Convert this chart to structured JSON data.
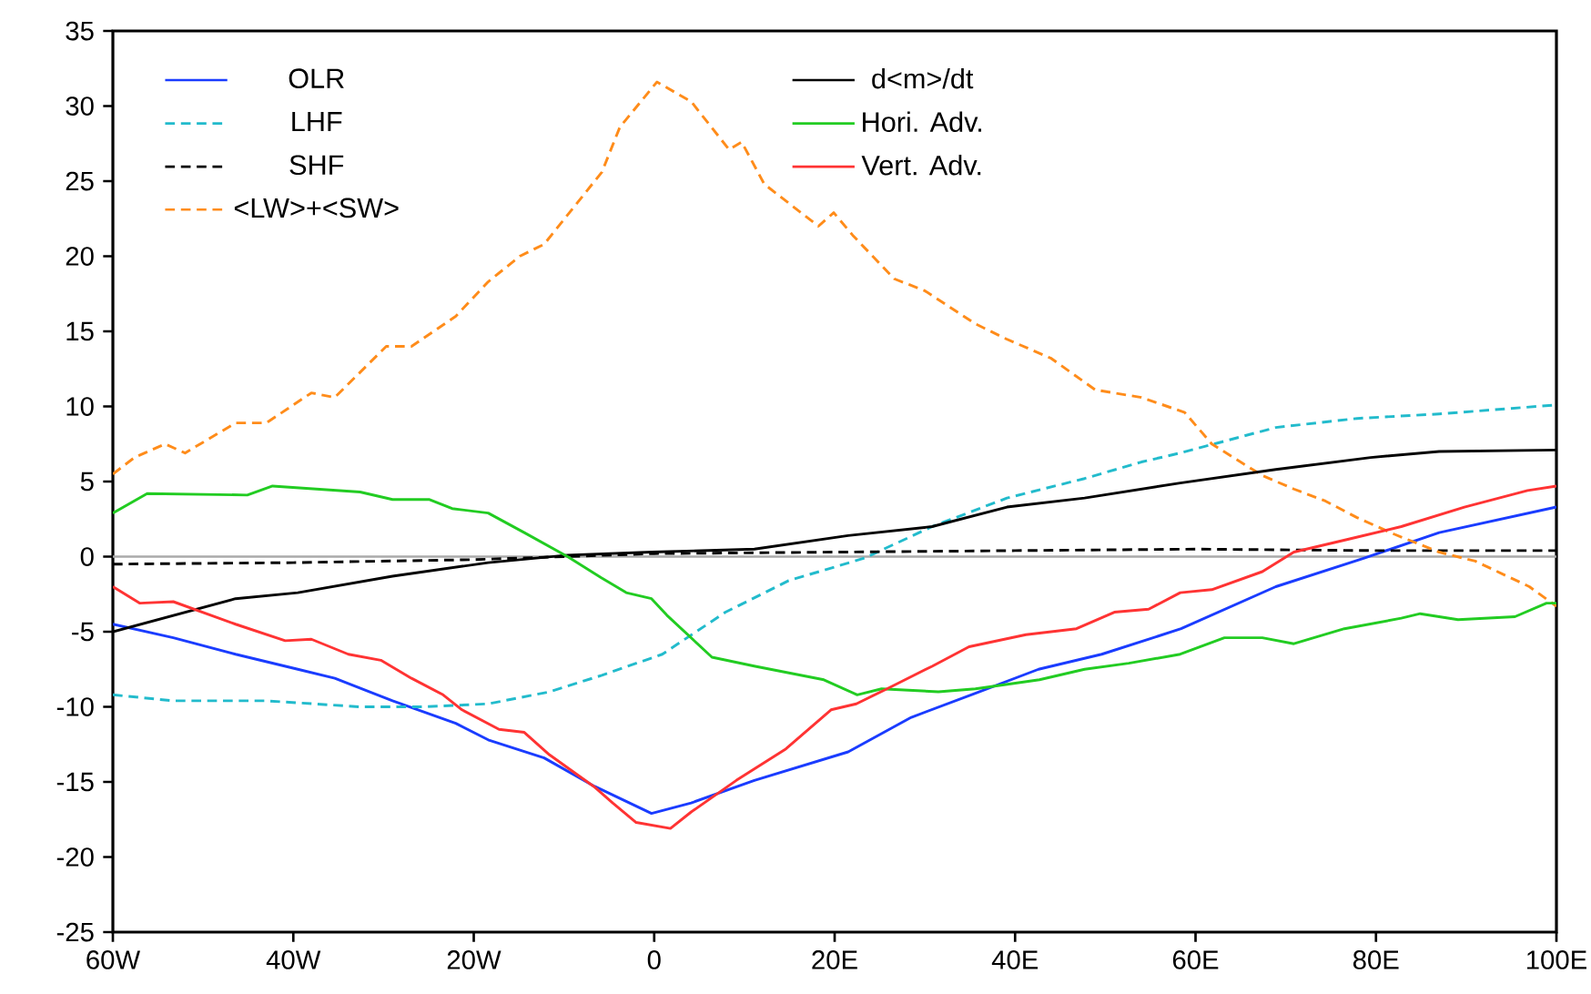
{
  "chart_data": {
    "type": "line",
    "xlim": [
      -60,
      100
    ],
    "ylim": [
      -25,
      35
    ],
    "xticks": [
      {
        "value": -60,
        "label": "60W"
      },
      {
        "value": -40,
        "label": "40W"
      },
      {
        "value": -20,
        "label": "20W"
      },
      {
        "value": 0,
        "label": "0"
      },
      {
        "value": 20,
        "label": "20E"
      },
      {
        "value": 40,
        "label": "40E"
      },
      {
        "value": 60,
        "label": "60E"
      },
      {
        "value": 80,
        "label": "80E"
      },
      {
        "value": 100,
        "label": "100E"
      }
    ],
    "yticks": [
      -25,
      -20,
      -15,
      -10,
      -5,
      0,
      5,
      10,
      15,
      20,
      25,
      30,
      35
    ],
    "legend": "top left",
    "marker": "none",
    "ref_lines": [
      {
        "axis": "y",
        "value": 0,
        "color": "#aaaaaa"
      }
    ],
    "series": [
      {
        "name": "OLR",
        "color": "#1a3cff",
        "line_style": "solid",
        "x": [
          -60,
          -53.3,
          -46.4,
          -39.5,
          -35.4,
          -29,
          -22,
          -18.4,
          -12.2,
          -6.6,
          -0.3,
          4.1,
          11.1,
          21.5,
          28.5,
          35.6,
          42.6,
          49.6,
          58.4,
          68.9,
          78.7,
          87,
          100
        ],
        "values": [
          -4.5,
          -5.4,
          -6.5,
          -7.5,
          -8.1,
          -9.6,
          -11.1,
          -12.2,
          -13.4,
          -15.3,
          -17.1,
          -16.4,
          -14.9,
          -13,
          -10.7,
          -9.1,
          -7.5,
          -6.5,
          -4.8,
          -2,
          -0.1,
          1.6,
          3.3
        ]
      },
      {
        "name": "LHF",
        "color": "#22bbcc",
        "line_style": "dashed",
        "x": [
          -60,
          -53.3,
          -43,
          -32.6,
          -25.5,
          -18.4,
          -11.6,
          -5.8,
          0.9,
          7.9,
          14.9,
          23.3,
          30.8,
          39.1,
          47.7,
          54,
          58.3,
          68.9,
          77.9,
          87,
          100
        ],
        "values": [
          -9.2,
          -9.6,
          -9.6,
          -10,
          -10,
          -9.8,
          -9,
          -7.9,
          -6.5,
          -3.7,
          -1.6,
          -0.1,
          2,
          3.9,
          5.2,
          6.3,
          6.9,
          8.6,
          9.2,
          9.5,
          10.1
        ]
      },
      {
        "name": "SHF",
        "color": "#000000",
        "line_style": "dashed",
        "x": [
          -60,
          -40,
          -20,
          -10,
          0,
          20,
          40,
          60,
          80,
          100
        ],
        "values": [
          -0.5,
          -0.4,
          -0.2,
          0,
          0.2,
          0.3,
          0.4,
          0.5,
          0.4,
          0.4
        ]
      },
      {
        "name": "<LW>+<SW>",
        "color": "#ff8c1a",
        "line_style": "dashed",
        "x": [
          -60,
          -57.6,
          -54.2,
          -52,
          -46.4,
          -43,
          -38,
          -35.4,
          -29.7,
          -26.9,
          -22,
          -18.4,
          -14.9,
          -12.2,
          -5.8,
          -3.8,
          0.3,
          4.1,
          8.3,
          9.7,
          12.2,
          18.2,
          19.9,
          22,
          26.6,
          30,
          35.6,
          39,
          44,
          48.9,
          54,
          58.8,
          61.8,
          67.4,
          70.9,
          74.4,
          77.9,
          82,
          87,
          91,
          97,
          100
        ],
        "values": [
          5.5,
          6.6,
          7.5,
          6.9,
          8.9,
          8.9,
          10.9,
          10.6,
          14,
          14,
          16,
          18.3,
          20,
          20.8,
          25.6,
          28.6,
          31.6,
          30.3,
          27.1,
          27.6,
          24.8,
          22,
          22.9,
          21.4,
          18.5,
          17.7,
          15.5,
          14.5,
          13.2,
          11.1,
          10.6,
          9.6,
          7.5,
          5.4,
          4.5,
          3.7,
          2.6,
          1.5,
          0.3,
          -0.3,
          -2,
          -3.3
        ]
      },
      {
        "name": "d<m>/dt",
        "color": "#000000",
        "line_style": "solid",
        "x": [
          -60,
          -46.4,
          -39.5,
          -29,
          -18.4,
          -9.6,
          -0.3,
          11.1,
          21.5,
          30.8,
          39.1,
          47.7,
          58.3,
          68.9,
          79.4,
          87,
          100
        ],
        "values": [
          -5,
          -2.8,
          -2.4,
          -1.3,
          -0.4,
          0.1,
          0.3,
          0.5,
          1.4,
          2,
          3.3,
          3.9,
          4.9,
          5.8,
          6.6,
          7,
          7.1
        ]
      },
      {
        "name": "Hori. Adv.",
        "color": "#22cc22",
        "line_style": "solid",
        "x": [
          -60,
          -56.2,
          -45.1,
          -42.3,
          -32.6,
          -29,
          -24.9,
          -22.4,
          -18.4,
          -14.4,
          -9.6,
          -5.9,
          -3.1,
          -0.3,
          1.4,
          6.4,
          11.2,
          18.8,
          22.5,
          25.2,
          31.5,
          35.6,
          42.7,
          47.7,
          52.6,
          58.3,
          63.2,
          67.4,
          70.9,
          76.5,
          82.8,
          84.9,
          89.1,
          95.4,
          98.9,
          100
        ],
        "values": [
          2.9,
          4.2,
          4.1,
          4.7,
          4.3,
          3.8,
          3.8,
          3.2,
          2.9,
          1.6,
          0,
          -1.4,
          -2.4,
          -2.8,
          -3.9,
          -6.7,
          -7.3,
          -8.2,
          -9.2,
          -8.8,
          -9,
          -8.8,
          -8.2,
          -7.5,
          -7.1,
          -6.5,
          -5.4,
          -5.4,
          -5.8,
          -4.8,
          -4.1,
          -3.8,
          -4.2,
          -4,
          -3.1,
          -3.1
        ]
      },
      {
        "name": "Vert. Adv.",
        "color": "#ff3333",
        "line_style": "solid",
        "x": [
          -60,
          -57,
          -53.3,
          -46.4,
          -40.9,
          -38,
          -33.9,
          -30.3,
          -26.9,
          -23.4,
          -21.3,
          -17.2,
          -14.4,
          -11.6,
          -6.7,
          -4.6,
          -2,
          1.8,
          4.1,
          9.1,
          14.6,
          19.6,
          22.4,
          25.8,
          30.8,
          34.9,
          41.2,
          46.8,
          51,
          54.8,
          58.3,
          61.8,
          67.4,
          70.9,
          77.2,
          82.8,
          89.8,
          96.8,
          100
        ],
        "values": [
          -2,
          -3.1,
          -3,
          -4.5,
          -5.6,
          -5.5,
          -6.5,
          -6.9,
          -8.1,
          -9.2,
          -10.2,
          -11.5,
          -11.7,
          -13.2,
          -15.3,
          -16.4,
          -17.7,
          -18.1,
          -17,
          -14.9,
          -12.8,
          -10.2,
          -9.8,
          -8.8,
          -7.3,
          -6,
          -5.2,
          -4.8,
          -3.7,
          -3.5,
          -2.4,
          -2.2,
          -1,
          0.3,
          1.2,
          2,
          3.3,
          4.4,
          4.7
        ]
      }
    ]
  }
}
